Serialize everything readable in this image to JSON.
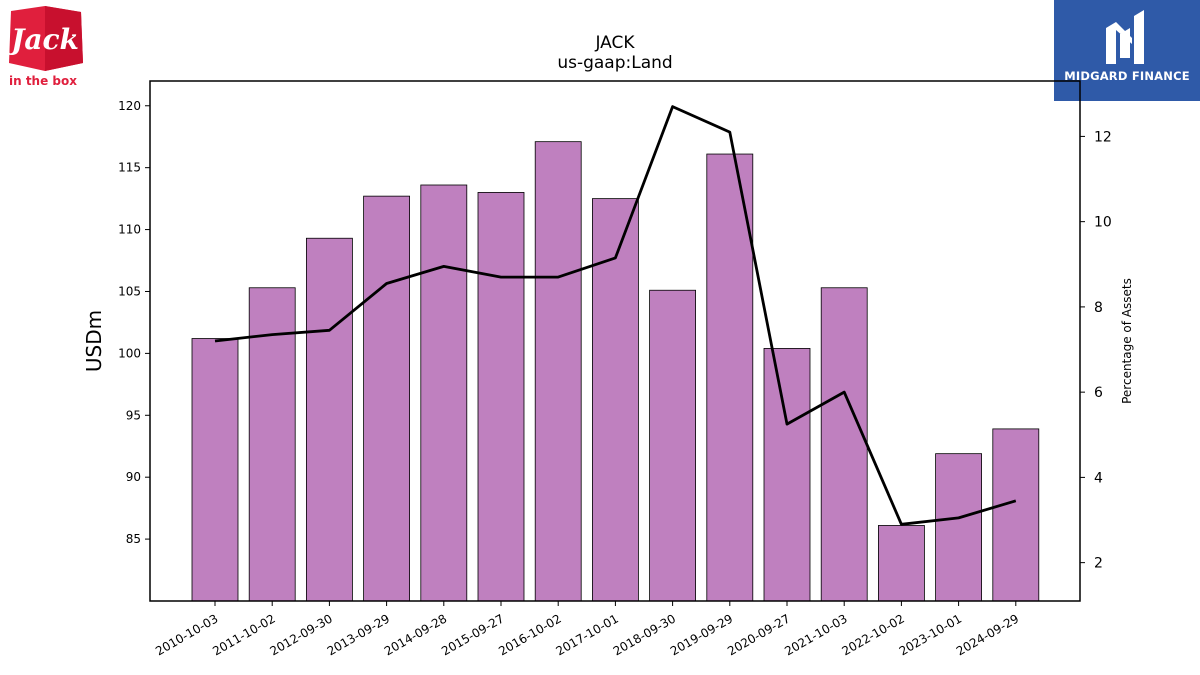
{
  "brand": {
    "left_logo_text": [
      "Jack",
      "in the box"
    ],
    "right_logo_text": "MIDGARD FINANCE"
  },
  "colors": {
    "bar_fill": "#bf80bf",
    "line": "#000000",
    "jack_red": "#e01f3d",
    "midgard_blue": "#2f5aa8"
  },
  "chart_data": {
    "type": "bar",
    "title": "JACK",
    "subtitle": "us-gaap:Land",
    "ylabel": "USDm",
    "y2label": "Percentage of Assets",
    "categories": [
      "2010-10-03",
      "2011-10-02",
      "2012-09-30",
      "2013-09-29",
      "2014-09-28",
      "2015-09-27",
      "2016-10-02",
      "2017-10-01",
      "2018-09-30",
      "2019-09-29",
      "2020-09-27",
      "2021-10-03",
      "2022-10-02",
      "2023-10-01",
      "2024-09-29"
    ],
    "ylim": [
      80,
      122
    ],
    "y2lim": [
      1.1,
      13.3
    ],
    "yticks": [
      85,
      90,
      95,
      100,
      105,
      110,
      115,
      120
    ],
    "y2ticks": [
      2,
      4,
      6,
      8,
      10,
      12
    ],
    "series": [
      {
        "kind": "bar",
        "axis": "left",
        "values": [
          101.2,
          105.3,
          109.3,
          112.7,
          113.6,
          113.0,
          117.1,
          112.5,
          105.1,
          116.1,
          100.4,
          105.3,
          86.1,
          91.9,
          93.9
        ]
      },
      {
        "kind": "line",
        "axis": "right",
        "values": [
          7.2,
          7.35,
          7.45,
          8.55,
          8.95,
          8.7,
          8.7,
          9.15,
          12.7,
          12.1,
          5.25,
          6.0,
          2.9,
          3.05,
          3.45
        ]
      }
    ],
    "grid": false
  }
}
